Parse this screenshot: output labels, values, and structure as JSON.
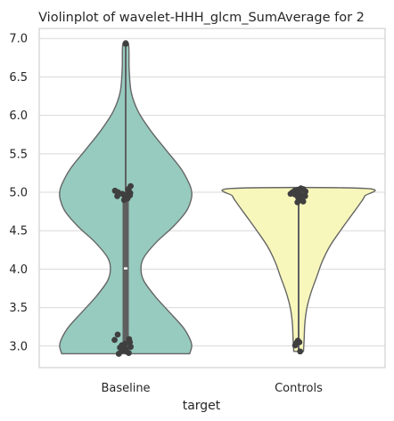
{
  "chart_data": {
    "type": "violin",
    "title": "Violinplot of wavelet-HHH_glcm_SumAverage for 2",
    "xlabel": "target",
    "ylabel": "",
    "categories": [
      "Baseline",
      "Controls"
    ],
    "ylim": [
      2.72,
      7.13
    ],
    "yticks": [
      3.0,
      3.5,
      4.0,
      4.5,
      5.0,
      5.5,
      6.0,
      6.5,
      7.0
    ],
    "grid": "horizontal",
    "colors": {
      "Baseline": "#97cbbf",
      "Controls": "#f8f7bb",
      "outline": "#666666",
      "points": "#3f3f3f",
      "grid": "#d9d9d9",
      "spine": "#d0d0d0"
    },
    "violins": [
      {
        "category": "Baseline",
        "min": 2.9,
        "max": 6.93,
        "density": [
          [
            2.9,
            0.92
          ],
          [
            3.0,
            0.95
          ],
          [
            3.1,
            0.92
          ],
          [
            3.25,
            0.82
          ],
          [
            3.45,
            0.62
          ],
          [
            3.65,
            0.42
          ],
          [
            3.85,
            0.26
          ],
          [
            4.0,
            0.22
          ],
          [
            4.15,
            0.26
          ],
          [
            4.35,
            0.44
          ],
          [
            4.55,
            0.68
          ],
          [
            4.75,
            0.87
          ],
          [
            4.9,
            0.94
          ],
          [
            5.0,
            0.95
          ],
          [
            5.1,
            0.92
          ],
          [
            5.3,
            0.8
          ],
          [
            5.55,
            0.58
          ],
          [
            5.8,
            0.36
          ],
          [
            6.05,
            0.18
          ],
          [
            6.3,
            0.08
          ],
          [
            6.6,
            0.05
          ],
          [
            6.93,
            0.04
          ]
        ],
        "box": {
          "q1": 3.0,
          "median": 4.01,
          "q3": 4.9,
          "whisker_low": 2.9,
          "whisker_high": 6.93
        },
        "points": [
          [
            6.93,
            0.0
          ],
          [
            5.08,
            0.13
          ],
          [
            5.04,
            0.07
          ],
          [
            5.02,
            -0.28
          ],
          [
            5.01,
            0.09
          ],
          [
            5.0,
            -0.2
          ],
          [
            4.99,
            0.12
          ],
          [
            4.98,
            -0.09
          ],
          [
            4.97,
            0.03
          ],
          [
            4.96,
            0.11
          ],
          [
            4.95,
            -0.22
          ],
          [
            4.93,
            -0.02
          ],
          [
            4.92,
            0.05
          ],
          [
            4.9,
            -0.04
          ],
          [
            3.15,
            -0.21
          ],
          [
            3.09,
            0.09
          ],
          [
            3.08,
            -0.29
          ],
          [
            3.05,
            0.11
          ],
          [
            3.03,
            -0.02
          ],
          [
            3.01,
            -0.1
          ],
          [
            2.99,
            0.13
          ],
          [
            2.98,
            -0.15
          ],
          [
            2.96,
            0.01
          ],
          [
            2.94,
            -0.09
          ],
          [
            2.93,
            0.02
          ],
          [
            2.91,
            0.08
          ],
          [
            2.9,
            -0.18
          ]
        ]
      },
      {
        "category": "Controls",
        "min": 2.93,
        "max": 5.05,
        "density": [
          [
            2.93,
            0.07
          ],
          [
            3.1,
            0.08
          ],
          [
            3.3,
            0.09
          ],
          [
            3.5,
            0.12
          ],
          [
            3.7,
            0.18
          ],
          [
            3.9,
            0.26
          ],
          [
            4.1,
            0.34
          ],
          [
            4.3,
            0.45
          ],
          [
            4.5,
            0.6
          ],
          [
            4.7,
            0.76
          ],
          [
            4.85,
            0.88
          ],
          [
            4.95,
            0.95
          ],
          [
            5.05,
            0.96
          ]
        ],
        "box": {
          "q1": 4.95,
          "median": 5.0,
          "q3": 5.03,
          "whisker_low": 2.93,
          "whisker_high": 5.05
        },
        "points": [
          [
            5.05,
            0.06
          ],
          [
            5.04,
            0.12
          ],
          [
            5.03,
            -0.03
          ],
          [
            5.02,
            -0.1
          ],
          [
            5.01,
            0.18
          ],
          [
            5.0,
            -0.16
          ],
          [
            4.99,
            0.02
          ],
          [
            4.98,
            -0.21
          ],
          [
            4.97,
            -0.09
          ],
          [
            4.96,
            0.08
          ],
          [
            4.95,
            0.17
          ],
          [
            4.93,
            -0.01
          ],
          [
            4.9,
            0.05
          ],
          [
            4.88,
            0.12
          ],
          [
            4.87,
            -0.03
          ],
          [
            3.07,
            -0.02
          ],
          [
            3.05,
            0.02
          ],
          [
            3.04,
            -0.06
          ],
          [
            3.01,
            -0.09
          ],
          [
            2.93,
            0.04
          ]
        ]
      }
    ]
  }
}
